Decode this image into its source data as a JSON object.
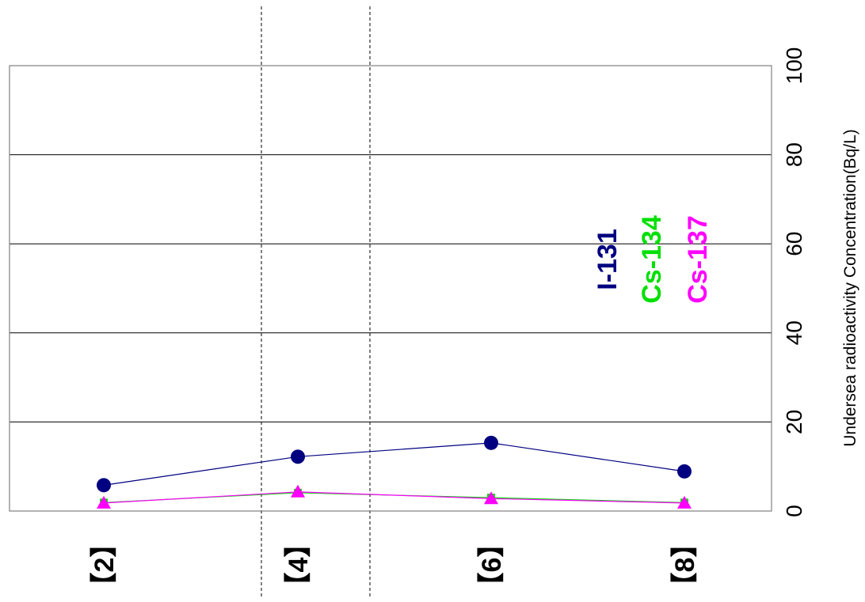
{
  "chart_data": {
    "type": "line",
    "orientation": "rotated-90-cw",
    "categories": [
      "【2】",
      "【4】",
      "【6】",
      "【8】"
    ],
    "y_axis": {
      "label": "Undersea radioactivity Concentration(Bq/L)",
      "range": [
        0,
        100
      ],
      "ticks": [
        0,
        20,
        40,
        60,
        80,
        100
      ],
      "grid": true
    },
    "series": [
      {
        "name": "I-131",
        "color": "#000080",
        "marker": "circle",
        "values": [
          5.8,
          12.2,
          15.3,
          8.9
        ]
      },
      {
        "name": "Cs-134",
        "color": "#00e000",
        "marker": "square",
        "values": [
          1.9,
          4.1,
          3.0,
          1.9
        ]
      },
      {
        "name": "Cs-137",
        "color": "#ff00ff",
        "marker": "triangle",
        "values": [
          1.8,
          4.3,
          2.8,
          1.8
        ]
      }
    ],
    "legend": "center-right",
    "category_separators": "dashed lines between 【4】 and its neighbours"
  }
}
